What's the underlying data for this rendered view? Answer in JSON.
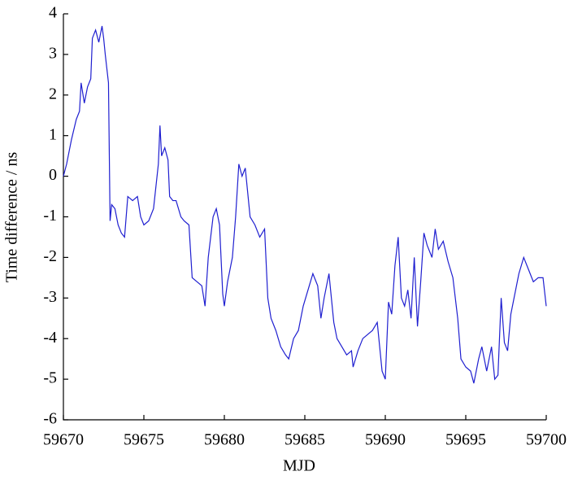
{
  "chart_data": {
    "type": "line",
    "xlabel": "MJD",
    "ylabel": "Time difference / ns",
    "xlim": [
      59670,
      59700
    ],
    "xticks": [
      59670,
      59675,
      59680,
      59685,
      59690,
      59695,
      59700
    ],
    "ylim": [
      -6,
      4
    ],
    "yticks": [
      -6,
      -5,
      -4,
      -3,
      -2,
      -1,
      0,
      1,
      2,
      3,
      4
    ],
    "series": [
      {
        "color": "#1f1fd0",
        "x": [
          59670.0,
          59670.2,
          59670.5,
          59670.8,
          59671.0,
          59671.1,
          59671.3,
          59671.5,
          59671.7,
          59671.8,
          59672.0,
          59672.2,
          59672.4,
          59672.5,
          59672.6,
          59672.8,
          59672.9,
          59673.0,
          59673.2,
          59673.4,
          59673.6,
          59673.8,
          59674.0,
          59674.3,
          59674.6,
          59674.8,
          59675.0,
          59675.3,
          59675.6,
          59675.9,
          59676.0,
          59676.1,
          59676.3,
          59676.5,
          59676.6,
          59676.8,
          59677.0,
          59677.3,
          59677.5,
          59677.8,
          59678.0,
          59678.3,
          59678.6,
          59678.8,
          59679.0,
          59679.3,
          59679.5,
          59679.7,
          59679.9,
          59680.0,
          59680.2,
          59680.5,
          59680.7,
          59680.9,
          59681.1,
          59681.3,
          59681.6,
          59681.9,
          59682.2,
          59682.5,
          59682.7,
          59682.9,
          59683.2,
          59683.5,
          59683.8,
          59684.0,
          59684.3,
          59684.6,
          59684.9,
          59685.2,
          59685.5,
          59685.8,
          59686.0,
          59686.2,
          59686.5,
          59686.8,
          59687.0,
          59687.3,
          59687.6,
          59687.9,
          59688.0,
          59688.3,
          59688.6,
          59688.9,
          59689.2,
          59689.5,
          59689.8,
          59690.0,
          59690.2,
          59690.4,
          59690.6,
          59690.8,
          59691.0,
          59691.2,
          59691.4,
          59691.6,
          59691.8,
          59692.0,
          59692.2,
          59692.4,
          59692.6,
          59692.9,
          59693.1,
          59693.3,
          59693.6,
          59693.9,
          59694.2,
          59694.5,
          59694.7,
          59695.0,
          59695.3,
          59695.5,
          59695.8,
          59696.0,
          59696.3,
          59696.6,
          59696.8,
          59697.0,
          59697.2,
          59697.4,
          59697.6,
          59697.8,
          59698.0,
          59698.3,
          59698.6,
          59698.9,
          59699.2,
          59699.5,
          59699.8,
          59700.0
        ],
        "values": [
          0,
          0.3,
          0.9,
          1.4,
          1.6,
          2.3,
          1.8,
          2.2,
          2.4,
          3.4,
          3.6,
          3.3,
          3.7,
          3.4,
          3.0,
          2.3,
          -1.1,
          -0.7,
          -0.8,
          -1.2,
          -1.4,
          -1.5,
          -0.5,
          -0.6,
          -0.5,
          -1.0,
          -1.2,
          -1.1,
          -0.8,
          0.3,
          1.25,
          0.5,
          0.7,
          0.4,
          -0.5,
          -0.6,
          -0.6,
          -1.0,
          -1.1,
          -1.2,
          -2.5,
          -2.6,
          -2.7,
          -3.2,
          -2.0,
          -1.0,
          -0.8,
          -1.2,
          -2.9,
          -3.2,
          -2.6,
          -2.0,
          -1.0,
          0.3,
          0.0,
          0.2,
          -1.0,
          -1.2,
          -1.5,
          -1.3,
          -3.0,
          -3.5,
          -3.8,
          -4.2,
          -4.4,
          -4.5,
          -4.0,
          -3.8,
          -3.2,
          -2.8,
          -2.4,
          -2.7,
          -3.5,
          -3.0,
          -2.4,
          -3.6,
          -4.0,
          -4.2,
          -4.4,
          -4.3,
          -4.7,
          -4.3,
          -4.0,
          -3.9,
          -3.8,
          -3.6,
          -4.8,
          -5.0,
          -3.1,
          -3.4,
          -2.2,
          -1.5,
          -3.0,
          -3.2,
          -2.8,
          -3.5,
          -2.0,
          -3.7,
          -2.6,
          -1.4,
          -1.7,
          -2.0,
          -1.3,
          -1.8,
          -1.6,
          -2.1,
          -2.5,
          -3.5,
          -4.5,
          -4.7,
          -4.8,
          -5.1,
          -4.5,
          -4.2,
          -4.8,
          -4.2,
          -5.0,
          -4.9,
          -3.0,
          -4.1,
          -4.3,
          -3.4,
          -3.0,
          -2.4,
          -2.0,
          -2.3,
          -2.6,
          -2.5,
          -2.5,
          -3.2
        ]
      }
    ]
  }
}
